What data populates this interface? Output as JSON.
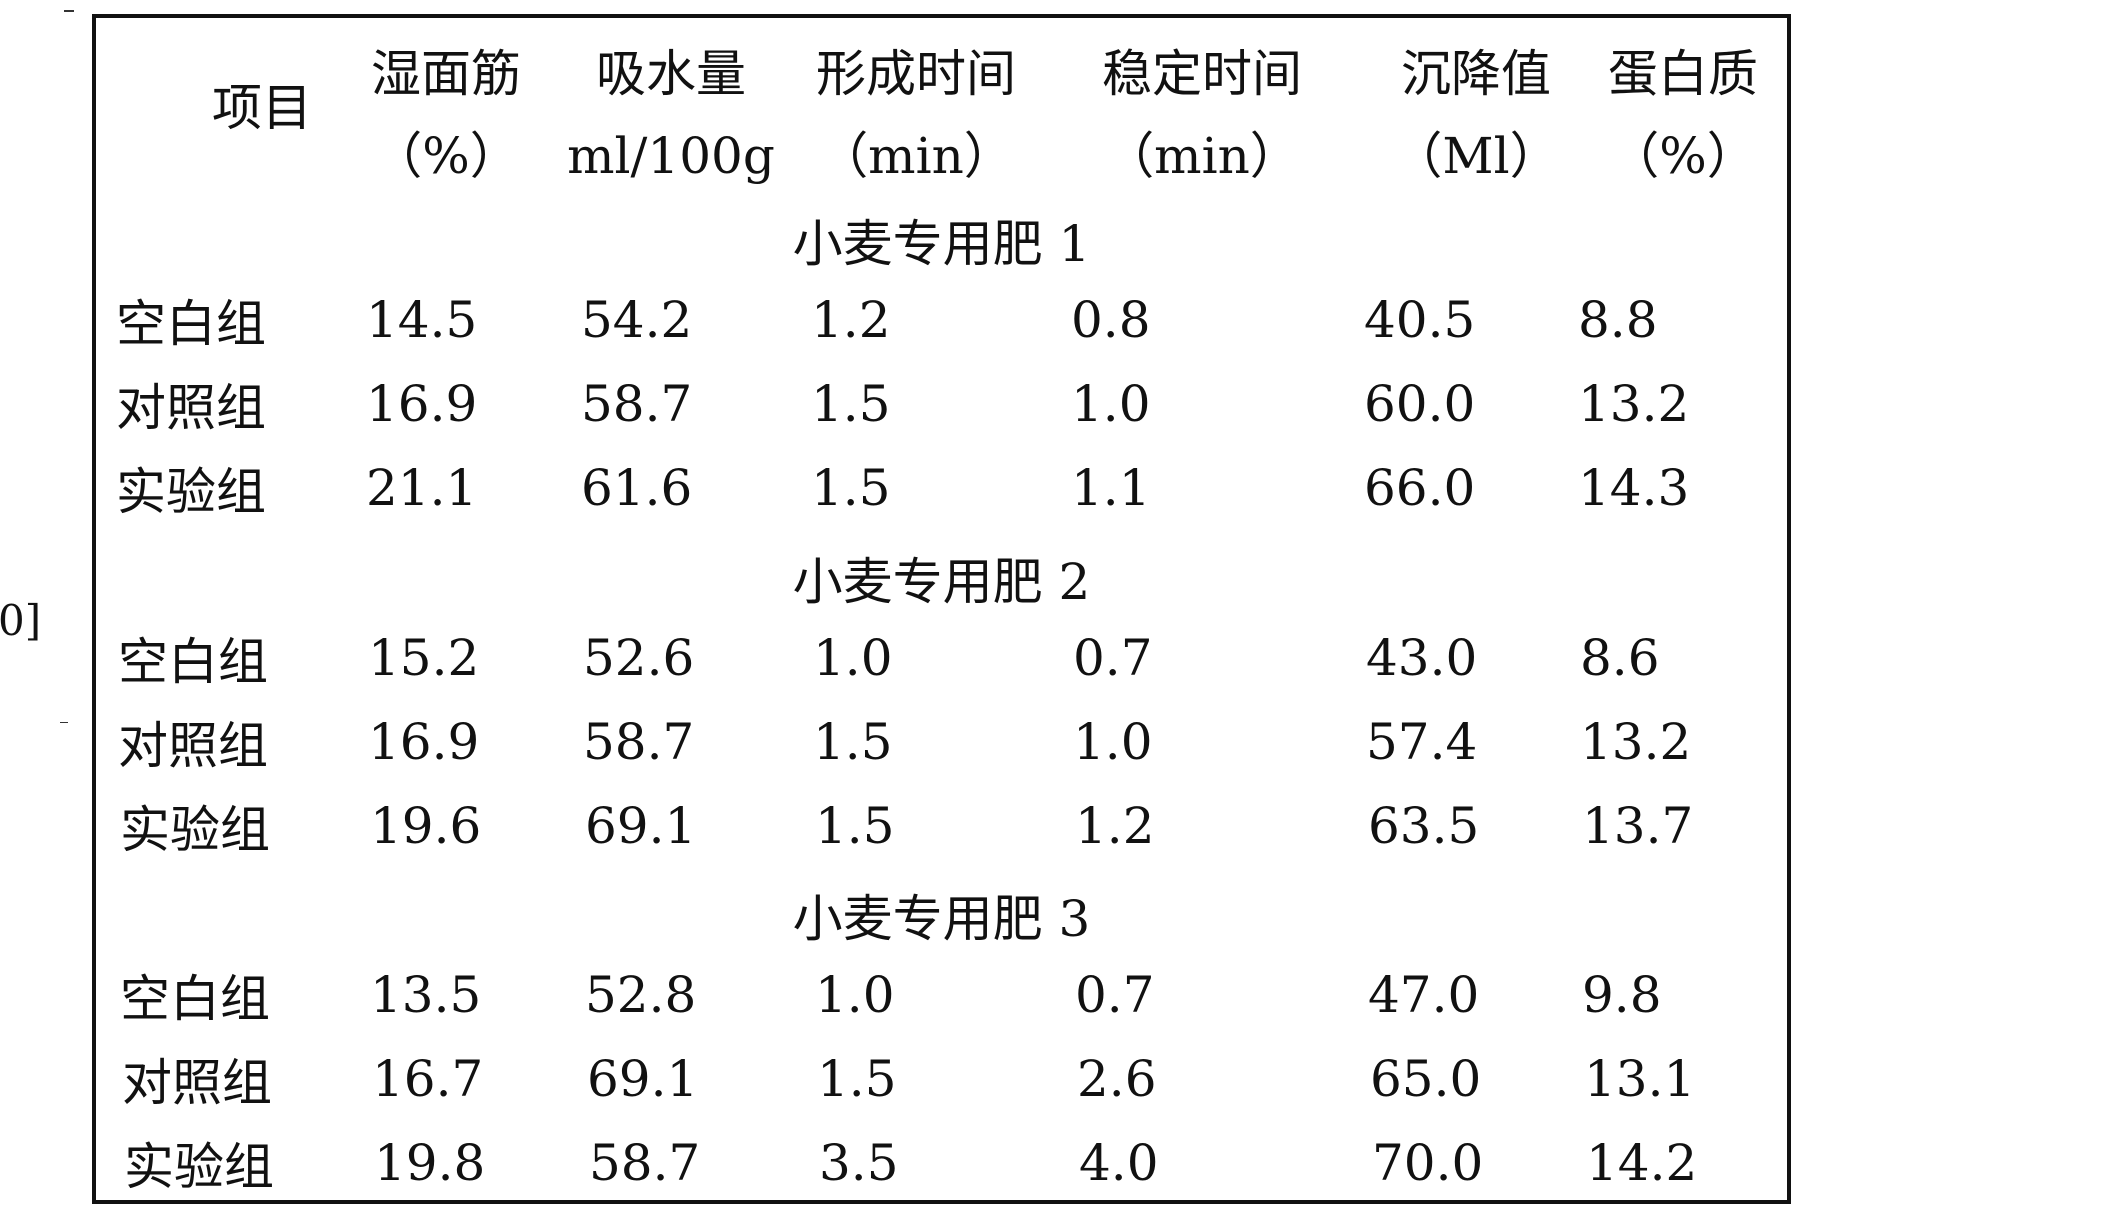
{
  "margin_note": "0]",
  "table": {
    "corner_header": "项目",
    "columns": [
      {
        "name": "湿面筋",
        "unit": "（%）"
      },
      {
        "name": "吸水量",
        "unit": "ml/100g"
      },
      {
        "name": "形成时间",
        "unit": "（min）"
      },
      {
        "name": "稳定时间",
        "unit": "（min）"
      },
      {
        "name": "沉降值",
        "unit": "（Ml）"
      },
      {
        "name": "蛋白质",
        "unit": "（%）"
      }
    ],
    "sections": [
      {
        "title": "小麦专用肥 1",
        "rows": [
          {
            "group": "空白组",
            "values": [
              "14.5",
              "54.2",
              "1.2",
              "0.8",
              "40.5",
              "8.8"
            ]
          },
          {
            "group": "对照组",
            "values": [
              "16.9",
              "58.7",
              "1.5",
              "1.0",
              "60.0",
              "13.2"
            ]
          },
          {
            "group": "实验组",
            "values": [
              "21.1",
              "61.6",
              "1.5",
              "1.1",
              "66.0",
              "14.3"
            ]
          }
        ]
      },
      {
        "title": "小麦专用肥 2",
        "rows": [
          {
            "group": "空白组",
            "values": [
              "15.2",
              "52.6",
              "1.0",
              "0.7",
              "43.0",
              "8.6"
            ]
          },
          {
            "group": "对照组",
            "values": [
              "16.9",
              "58.7",
              "1.5",
              "1.0",
              "57.4",
              "13.2"
            ]
          },
          {
            "group": "实验组",
            "values": [
              "19.6",
              "69.1",
              "1.5",
              "1.2",
              "63.5",
              "13.7"
            ]
          }
        ]
      },
      {
        "title": "小麦专用肥 3",
        "rows": [
          {
            "group": "空白组",
            "values": [
              "13.5",
              "52.8",
              "1.0",
              "0.7",
              "47.0",
              "9.8"
            ]
          },
          {
            "group": "对照组",
            "values": [
              "16.7",
              "69.1",
              "1.5",
              "2.6",
              "65.0",
              "13.1"
            ]
          },
          {
            "group": "实验组",
            "values": [
              "19.8",
              "58.7",
              "3.5",
              "4.0",
              "70.0",
              "14.2"
            ]
          }
        ]
      }
    ]
  }
}
